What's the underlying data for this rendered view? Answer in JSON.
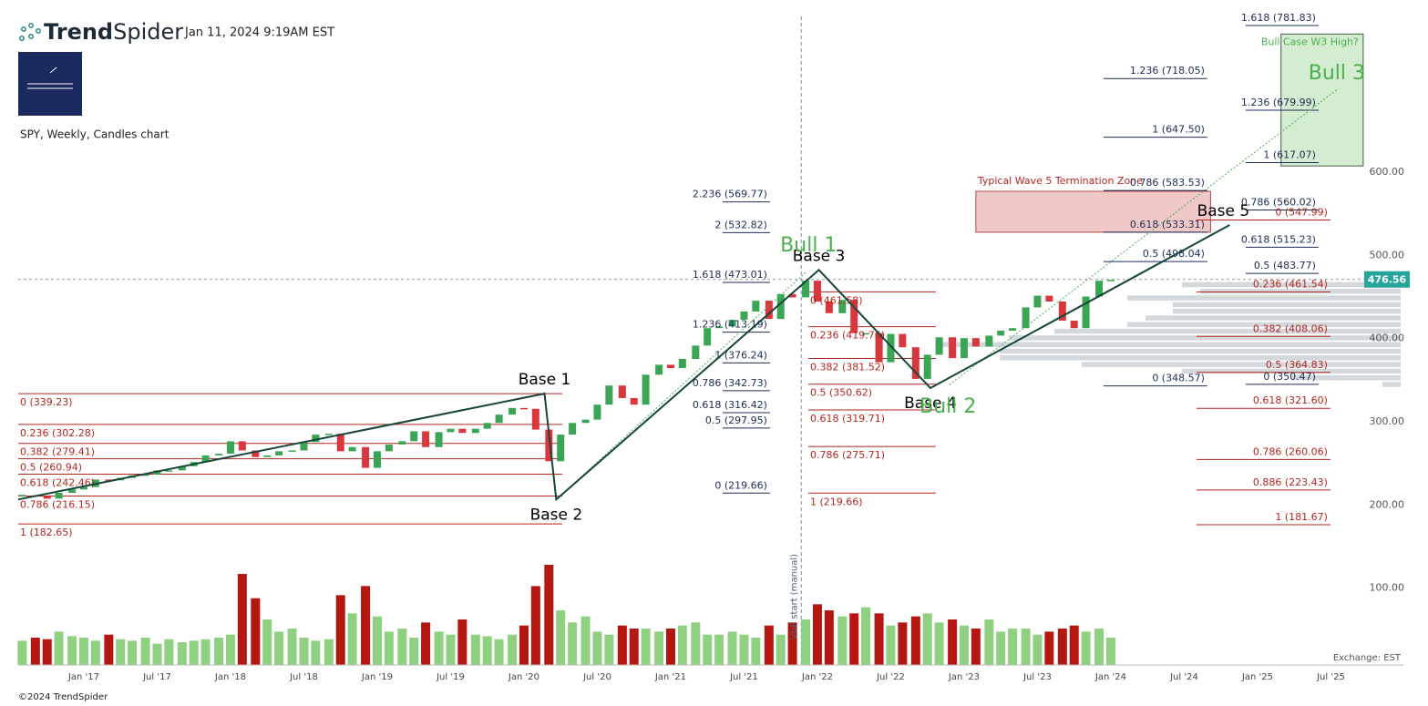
{
  "header": {
    "brand": [
      "Trend",
      "Spider"
    ],
    "timestamp": "Jan 11, 2024 9:19AM EST",
    "chart_label": "SPY, Weekly, Candles chart"
  },
  "footer": {
    "copyright": "©2024 TrendSpider",
    "exchange": "Exchange: EST"
  },
  "chart_data": {
    "type": "candlestick",
    "up_color": "#3aa655",
    "down_color": "#d9363e",
    "volume_up_color": "#8fd181",
    "volume_down_color": "#b3170f",
    "xlim": [
      2016.553,
      2025.994
    ],
    "ylim": [
      13,
      812.5
    ],
    "xticks": [
      {
        "value": 2017,
        "label": "Jan '17"
      },
      {
        "value": 2017.5,
        "label": "Jul '17"
      },
      {
        "value": 2018,
        "label": "Jan '18"
      },
      {
        "value": 2018.5,
        "label": "Jul '18"
      },
      {
        "value": 2019,
        "label": "Jan '19"
      },
      {
        "value": 2019.5,
        "label": "Jul '19"
      },
      {
        "value": 2020,
        "label": "Jan '20"
      },
      {
        "value": 2020.5,
        "label": "Jul '20"
      },
      {
        "value": 2021,
        "label": "Jan '21"
      },
      {
        "value": 2021.5,
        "label": "Jul '21"
      },
      {
        "value": 2022,
        "label": "Jan '22"
      },
      {
        "value": 2022.5,
        "label": "Jul '22"
      },
      {
        "value": 2023,
        "label": "Jan '23"
      },
      {
        "value": 2023.5,
        "label": "Jul '23"
      },
      {
        "value": 2024,
        "label": "Jan '24"
      },
      {
        "value": 2024.5,
        "label": "Jul '24"
      },
      {
        "value": 2025,
        "label": "Jan '25"
      },
      {
        "value": 2025.5,
        "label": "Jul '25"
      }
    ],
    "yticks": [
      {
        "value": 100,
        "label": "100.00"
      },
      {
        "value": 200,
        "label": "200.00"
      },
      {
        "value": 300,
        "label": "300.00"
      },
      {
        "value": 400,
        "label": "400.00"
      },
      {
        "value": 500,
        "label": "500.00"
      },
      {
        "value": 600,
        "label": "600.00"
      }
    ],
    "x": [
      2016.58,
      2016.67,
      2016.75,
      2016.83,
      2016.92,
      2017.0,
      2017.08,
      2017.17,
      2017.25,
      2017.33,
      2017.42,
      2017.5,
      2017.58,
      2017.67,
      2017.75,
      2017.83,
      2017.92,
      2018.0,
      2018.08,
      2018.17,
      2018.25,
      2018.33,
      2018.42,
      2018.5,
      2018.58,
      2018.67,
      2018.75,
      2018.83,
      2018.92,
      2019.0,
      2019.08,
      2019.17,
      2019.25,
      2019.33,
      2019.42,
      2019.5,
      2019.58,
      2019.67,
      2019.75,
      2019.83,
      2019.92,
      2020.0,
      2020.08,
      2020.17,
      2020.25,
      2020.33,
      2020.42,
      2020.5,
      2020.58,
      2020.67,
      2020.75,
      2020.83,
      2020.92,
      2021.0,
      2021.08,
      2021.17,
      2021.25,
      2021.33,
      2021.42,
      2021.5,
      2021.58,
      2021.67,
      2021.75,
      2021.83,
      2021.92,
      2022.0,
      2022.08,
      2022.17,
      2022.25,
      2022.33,
      2022.42,
      2022.5,
      2022.58,
      2022.67,
      2022.75,
      2022.83,
      2022.92,
      2023.0,
      2023.08,
      2023.17,
      2023.25,
      2023.33,
      2023.42,
      2023.5,
      2023.58,
      2023.67,
      2023.75,
      2023.83,
      2023.92,
      2024.0
    ],
    "close": [
      217,
      216,
      213,
      220,
      224,
      227,
      236,
      235,
      238,
      241,
      242,
      247,
      247,
      252,
      257,
      265,
      267,
      282,
      271,
      263,
      265,
      270,
      271,
      281,
      290,
      291,
      270,
      275,
      250,
      270,
      278,
      282,
      294,
      275,
      293,
      297,
      292,
      297,
      304,
      314,
      322,
      321,
      296,
      258,
      290,
      304,
      308,
      326,
      349,
      334,
      326,
      362,
      374,
      370,
      381,
      397,
      418,
      420,
      428,
      438,
      451,
      429,
      459,
      455,
      475,
      450,
      436,
      452,
      412,
      412,
      377,
      411,
      395,
      357,
      386,
      407,
      382,
      406,
      396,
      409,
      415,
      418,
      443,
      457,
      450,
      427,
      418,
      456,
      475,
      476
    ],
    "volume": [
      80,
      90,
      85,
      110,
      95,
      90,
      80,
      100,
      85,
      80,
      90,
      70,
      85,
      75,
      80,
      85,
      90,
      100,
      300,
      220,
      150,
      110,
      120,
      90,
      80,
      85,
      230,
      170,
      260,
      160,
      110,
      120,
      90,
      140,
      110,
      100,
      150,
      100,
      95,
      85,
      100,
      130,
      260,
      330,
      180,
      140,
      160,
      110,
      100,
      130,
      120,
      120,
      110,
      120,
      130,
      140,
      100,
      100,
      110,
      100,
      90,
      130,
      100,
      140,
      150,
      200,
      180,
      160,
      170,
      190,
      170,
      130,
      140,
      160,
      170,
      140,
      150,
      130,
      120,
      150,
      110,
      120,
      120,
      100,
      110,
      120,
      130,
      110,
      120,
      90
    ],
    "last_price": 476.56,
    "last_price_color": "#26a69a",
    "vbp": {
      "start": 2021.89,
      "start_label": "VbP start (manual)",
      "color": "#d3d8dd",
      "prices": [
        350,
        358,
        366,
        374,
        382,
        390,
        398,
        406,
        414,
        422,
        430,
        438,
        446,
        454,
        462,
        470
      ],
      "volumes": [
        20,
        120,
        240,
        350,
        440,
        440,
        507,
        430,
        380,
        300,
        280,
        250,
        250,
        300,
        220,
        240
      ]
    },
    "fib_groups": [
      {
        "color": "#b3261e",
        "x_range": [
          2016.553,
          2020.261
        ],
        "label_align": "start",
        "label_side": "below",
        "levels": [
          339.23,
          302.28,
          279.41,
          260.94,
          242.46,
          216.15,
          182.65
        ],
        "level_labels": [
          "0 (339.23)",
          "0.236 (302.28)",
          "0.382 (279.41)",
          "0.5 (260.94)",
          "0.618 (242.46)",
          "0.786 (216.15)",
          "1 (182.65)"
        ]
      },
      {
        "color": "#1b2d55",
        "x_range": [
          2021.354,
          2021.677
        ],
        "label_align": "end",
        "label_side": "above",
        "levels": [
          569.77,
          532.82,
          473.01,
          413.19,
          376.24,
          342.73,
          316.42,
          297.95,
          219.66
        ],
        "level_labels": [
          "2.236 (569.77)",
          "2 (532.82)",
          "1.618 (473.01)",
          "1.236 (413.19)",
          "1 (376.24)",
          "0.786 (342.73)",
          "0.618 (316.42)",
          "0.5 (297.95)",
          "0 (219.66)"
        ]
      },
      {
        "color": "#b3261e",
        "x_range": [
          2021.938,
          2022.807
        ],
        "label_align": "start",
        "label_side": "below",
        "levels": [
          461.58,
          419.76,
          381.52,
          350.62,
          319.71,
          275.71,
          219.66
        ],
        "level_labels": [
          "0 (461.58)",
          "0.236 (419.76)",
          "0.382 (381.52)",
          "0.5 (350.62)",
          "0.618 (319.71)",
          "0.786 (275.71)",
          "1 (219.66)"
        ]
      },
      {
        "color": "#1b2d55",
        "x_range": [
          2023.95,
          2024.658
        ],
        "label_align": "end",
        "label_side": "above",
        "levels": [
          718.05,
          647.5,
          583.53,
          533.31,
          498.04,
          348.57
        ],
        "level_labels": [
          "1.236 (718.05)",
          "1 (647.50)",
          "0.786 (583.53)",
          "0.618 (533.31)",
          "0.5 (498.04)",
          "0 (348.57)"
        ]
      },
      {
        "color": "#1b2d55",
        "x_range": [
          2024.919,
          2025.416
        ],
        "label_align": "end",
        "label_side": "above",
        "levels": [
          781.83,
          679.99,
          617.07,
          560.02,
          515.23,
          483.77,
          350.47
        ],
        "level_labels": [
          "1.618 (781.83)",
          "1.236 (679.99)",
          "1 (617.07)",
          "0.786 (560.02)",
          "0.618 (515.23)",
          "0.5 (483.77)",
          "0 (350.47)"
        ]
      },
      {
        "color": "#b3261e",
        "x_range": [
          2024.584,
          2025.497
        ],
        "label_align": "end",
        "label_side": "above",
        "levels": [
          547.99,
          461.54,
          408.06,
          364.83,
          321.6,
          260.06,
          223.43,
          181.67
        ],
        "level_labels": [
          "0 (547.99)",
          "0.236 (461.54)",
          "0.382 (408.06)",
          "0.5 (364.83)",
          "0.618 (321.60)",
          "0.786 (260.06)",
          "0.886 (223.43)",
          "1 (181.67)"
        ]
      }
    ],
    "wave": {
      "color": "#16463a",
      "x": [
        2016.553,
        2020.14,
        2020.22,
        2022.01,
        2022.77,
        2024.81
      ],
      "y": [
        212,
        339.23,
        212,
        488,
        346,
        542
      ],
      "labels": [
        null,
        "Base 1",
        "Base 2",
        "Base 3",
        "Base 4",
        "Base 5"
      ]
    },
    "channel_lines": {
      "color": "#4caf50",
      "lines": [
        {
          "x": [
            2020.22,
            2021.92
          ],
          "y": [
            212,
            485
          ]
        },
        {
          "x": [
            2022.9,
            2025.55
          ],
          "y": [
            350,
            706
          ]
        }
      ]
    },
    "zones": [
      {
        "label": "Typical Wave 5 Termination Zone",
        "x": [
          2023.08,
          2024.68
        ],
        "y": [
          533.3,
          582.5
        ],
        "fill": "#f0c8c8",
        "stroke": "#b04a4a",
        "text_color": "#b3261e",
        "label_position": "above-left"
      },
      {
        "label": "Bull Case W3 High?",
        "x": [
          2025.16,
          2025.72
        ],
        "y": [
          613,
          771.6
        ],
        "fill": "#d4ecd0",
        "stroke": "#4a5a4a",
        "text_color": "#4caf50",
        "label_position": "inside-top-right"
      }
    ],
    "annotation_color": "#4caf50",
    "annotations": [
      {
        "text": "Bull 1",
        "x": 2021.94,
        "y": 516.8
      },
      {
        "text": "Bull 2",
        "x": 2022.89,
        "y": 322.9
      },
      {
        "text": "Bull 3",
        "x": 2025.54,
        "y": 723.7
      }
    ]
  }
}
